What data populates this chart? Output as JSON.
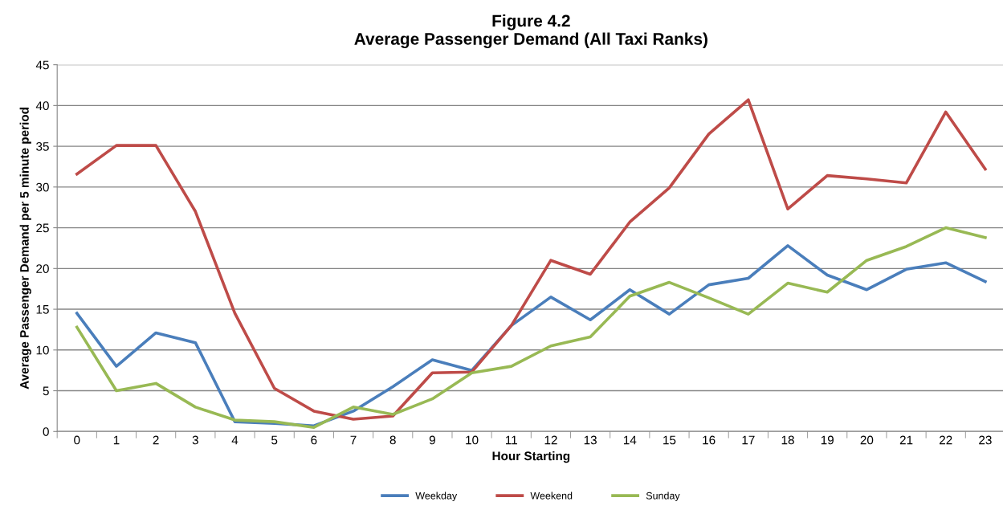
{
  "chart_data": {
    "type": "line",
    "title": "Figure 4.2\nAverage Passenger Demand (All Taxi Ranks)",
    "xlabel": "Hour Starting",
    "ylabel": "Average Passenger Demand per 5 minute period",
    "categories": [
      "0",
      "1",
      "2",
      "3",
      "4",
      "5",
      "6",
      "7",
      "8",
      "9",
      "10",
      "11",
      "12",
      "13",
      "14",
      "15",
      "16",
      "17",
      "18",
      "19",
      "20",
      "21",
      "22",
      "23"
    ],
    "series": [
      {
        "name": "Weekday",
        "color": "#4a7ebb",
        "values": [
          14.5,
          8.0,
          12.1,
          10.9,
          1.2,
          1.0,
          0.7,
          2.5,
          5.5,
          8.8,
          7.5,
          13.0,
          16.5,
          13.7,
          17.4,
          14.4,
          18.0,
          18.8,
          22.8,
          19.2,
          17.4,
          19.9,
          20.7,
          18.4
        ]
      },
      {
        "name": "Weekend",
        "color": "#be4b48",
        "values": [
          31.6,
          35.1,
          35.1,
          27.0,
          14.5,
          5.3,
          2.5,
          1.5,
          1.9,
          7.2,
          7.3,
          13.0,
          21.0,
          19.3,
          25.7,
          29.9,
          36.5,
          40.7,
          27.3,
          31.4,
          31.0,
          30.5,
          39.2,
          32.2
        ]
      },
      {
        "name": "Sunday",
        "color": "#98b954",
        "values": [
          12.8,
          5.0,
          5.9,
          3.0,
          1.4,
          1.2,
          0.5,
          3.0,
          2.1,
          4.0,
          7.2,
          8.0,
          10.5,
          11.6,
          16.6,
          18.3,
          16.4,
          14.4,
          18.2,
          17.1,
          21.0,
          22.7,
          25.0,
          23.8
        ]
      }
    ],
    "ylim": [
      0,
      45
    ],
    "yticks": [
      0,
      5,
      10,
      15,
      20,
      25,
      30,
      35,
      40,
      45
    ],
    "grid": "y",
    "legend": "bottom",
    "marker": "none",
    "line_style": "solid"
  }
}
